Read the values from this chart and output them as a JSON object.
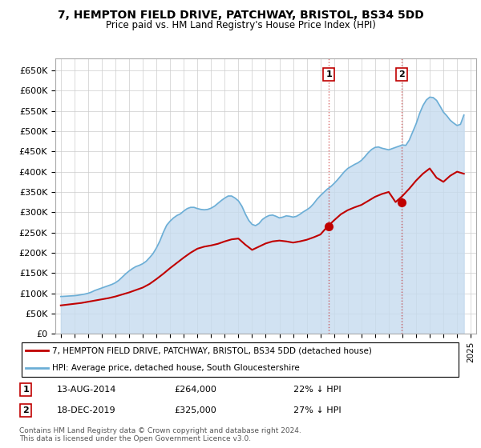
{
  "title": "7, HEMPTON FIELD DRIVE, PATCHWAY, BRISTOL, BS34 5DD",
  "subtitle": "Price paid vs. HM Land Registry's House Price Index (HPI)",
  "yticks": [
    0,
    50000,
    100000,
    150000,
    200000,
    250000,
    300000,
    350000,
    400000,
    450000,
    500000,
    550000,
    600000,
    650000
  ],
  "ytick_labels": [
    "£0",
    "£50K",
    "£100K",
    "£150K",
    "£200K",
    "£250K",
    "£300K",
    "£350K",
    "£400K",
    "£450K",
    "£500K",
    "£550K",
    "£600K",
    "£650K"
  ],
  "ylim": [
    0,
    680000
  ],
  "xlim": [
    1994.6,
    2025.4
  ],
  "hpi_color": "#6baed6",
  "hpi_fill_color": "#c6dbef",
  "price_color": "#c00000",
  "transaction1": {
    "date": "13-AUG-2014",
    "price": 264000,
    "pct": "22%",
    "label": "1",
    "x_year": 2014.62
  },
  "transaction2": {
    "date": "18-DEC-2019",
    "price": 325000,
    "pct": "27%",
    "label": "2",
    "x_year": 2019.96
  },
  "legend_house_label": "7, HEMPTON FIELD DRIVE, PATCHWAY, BRISTOL, BS34 5DD (detached house)",
  "legend_hpi_label": "HPI: Average price, detached house, South Gloucestershire",
  "footer": "Contains HM Land Registry data © Crown copyright and database right 2024.\nThis data is licensed under the Open Government Licence v3.0.",
  "hpi_data_years": [
    1995.0,
    1995.25,
    1995.5,
    1995.75,
    1996.0,
    1996.25,
    1996.5,
    1996.75,
    1997.0,
    1997.25,
    1997.5,
    1997.75,
    1998.0,
    1998.25,
    1998.5,
    1998.75,
    1999.0,
    1999.25,
    1999.5,
    1999.75,
    2000.0,
    2000.25,
    2000.5,
    2000.75,
    2001.0,
    2001.25,
    2001.5,
    2001.75,
    2002.0,
    2002.25,
    2002.5,
    2002.75,
    2003.0,
    2003.25,
    2003.5,
    2003.75,
    2004.0,
    2004.25,
    2004.5,
    2004.75,
    2005.0,
    2005.25,
    2005.5,
    2005.75,
    2006.0,
    2006.25,
    2006.5,
    2006.75,
    2007.0,
    2007.25,
    2007.5,
    2007.75,
    2008.0,
    2008.25,
    2008.5,
    2008.75,
    2009.0,
    2009.25,
    2009.5,
    2009.75,
    2010.0,
    2010.25,
    2010.5,
    2010.75,
    2011.0,
    2011.25,
    2011.5,
    2011.75,
    2012.0,
    2012.25,
    2012.5,
    2012.75,
    2013.0,
    2013.25,
    2013.5,
    2013.75,
    2014.0,
    2014.25,
    2014.5,
    2014.75,
    2015.0,
    2015.25,
    2015.5,
    2015.75,
    2016.0,
    2016.25,
    2016.5,
    2016.75,
    2017.0,
    2017.25,
    2017.5,
    2017.75,
    2018.0,
    2018.25,
    2018.5,
    2018.75,
    2019.0,
    2019.25,
    2019.5,
    2019.75,
    2020.0,
    2020.25,
    2020.5,
    2020.75,
    2021.0,
    2021.25,
    2021.5,
    2021.75,
    2022.0,
    2022.25,
    2022.5,
    2022.75,
    2023.0,
    2023.25,
    2023.5,
    2023.75,
    2024.0,
    2024.25,
    2024.5
  ],
  "hpi_data_values": [
    92000,
    92500,
    93000,
    93500,
    94000,
    95000,
    96500,
    98000,
    100000,
    103000,
    107000,
    110000,
    113000,
    116000,
    119000,
    122000,
    126000,
    132000,
    140000,
    148000,
    155000,
    161000,
    166000,
    169000,
    173000,
    179000,
    188000,
    198000,
    212000,
    229000,
    250000,
    268000,
    278000,
    286000,
    292000,
    296000,
    303000,
    309000,
    312000,
    312000,
    309000,
    307000,
    306000,
    307000,
    310000,
    315000,
    322000,
    329000,
    335000,
    340000,
    340000,
    335000,
    328000,
    315000,
    296000,
    280000,
    270000,
    267000,
    272000,
    282000,
    288000,
    292000,
    293000,
    290000,
    286000,
    288000,
    291000,
    290000,
    288000,
    290000,
    295000,
    301000,
    306000,
    312000,
    321000,
    332000,
    341000,
    349000,
    357000,
    363000,
    371000,
    380000,
    390000,
    400000,
    408000,
    413000,
    418000,
    422000,
    428000,
    437000,
    447000,
    455000,
    460000,
    461000,
    458000,
    456000,
    454000,
    457000,
    460000,
    463000,
    466000,
    465000,
    478000,
    498000,
    518000,
    543000,
    563000,
    577000,
    584000,
    583000,
    576000,
    562000,
    547000,
    538000,
    527000,
    520000,
    514000,
    517000,
    540000
  ],
  "price_data_years": [
    1995.0,
    1995.5,
    1996.0,
    1996.5,
    1997.0,
    1997.5,
    1998.0,
    1998.5,
    1999.0,
    1999.5,
    2000.0,
    2000.5,
    2001.0,
    2001.5,
    2002.0,
    2002.5,
    2003.0,
    2003.5,
    2004.0,
    2004.5,
    2005.0,
    2005.5,
    2006.0,
    2006.5,
    2007.0,
    2007.5,
    2008.0,
    2008.5,
    2009.0,
    2009.5,
    2010.0,
    2010.5,
    2011.0,
    2011.5,
    2012.0,
    2012.5,
    2013.0,
    2013.5,
    2014.0,
    2014.5,
    2015.0,
    2015.5,
    2016.0,
    2016.5,
    2017.0,
    2017.5,
    2018.0,
    2018.5,
    2019.0,
    2019.5,
    2020.0,
    2020.5,
    2021.0,
    2021.5,
    2022.0,
    2022.5,
    2023.0,
    2023.5,
    2024.0,
    2024.5
  ],
  "price_data_values": [
    70000,
    72000,
    74000,
    76000,
    79000,
    82000,
    85000,
    88000,
    92000,
    97000,
    102000,
    108000,
    114000,
    123000,
    135000,
    148000,
    162000,
    175000,
    188000,
    200000,
    210000,
    215000,
    218000,
    222000,
    228000,
    233000,
    235000,
    220000,
    207000,
    215000,
    223000,
    228000,
    230000,
    228000,
    225000,
    228000,
    232000,
    238000,
    245000,
    264000,
    280000,
    295000,
    305000,
    312000,
    318000,
    328000,
    338000,
    345000,
    350000,
    325000,
    340000,
    358000,
    378000,
    395000,
    408000,
    385000,
    375000,
    390000,
    400000,
    395000
  ]
}
